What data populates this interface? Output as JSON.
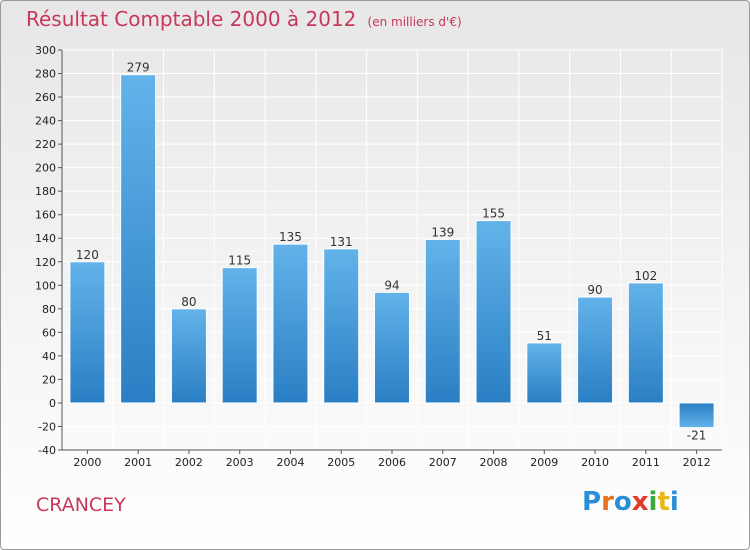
{
  "title": "Résultat Comptable 2000 à 2012",
  "unit_note": "(en milliers d'€)",
  "commune": "CRANCEY",
  "logo": {
    "text": "Proxiti",
    "colors": [
      "#2a8fd6",
      "#e8731a",
      "#2a8fd6",
      "#e03a2a",
      "#3aa83a",
      "#e8b81a",
      "#2a8fd6"
    ]
  },
  "colors": {
    "title": "#c8385a",
    "bar_light": "#6cb8ec",
    "bar_dark": "#2a7fc4",
    "grid": "#ffffff",
    "background_top": "#e7e7e7"
  },
  "chart_data": {
    "type": "bar",
    "categories": [
      "2000",
      "2001",
      "2002",
      "2003",
      "2004",
      "2005",
      "2006",
      "2007",
      "2008",
      "2009",
      "2010",
      "2011",
      "2012"
    ],
    "values": [
      120,
      279,
      80,
      115,
      135,
      131,
      94,
      139,
      155,
      51,
      90,
      102,
      -21
    ],
    "value_labels": [
      "120",
      "279",
      "80",
      "115",
      "135",
      "131",
      "94",
      "139",
      "155",
      "51",
      "90",
      "102",
      "-21"
    ],
    "ylim": [
      -40,
      300
    ],
    "yticks": [
      -40,
      -20,
      0,
      20,
      40,
      60,
      80,
      100,
      120,
      140,
      160,
      180,
      200,
      220,
      240,
      260,
      280,
      300
    ],
    "grid": true,
    "xlabel": "",
    "ylabel": ""
  }
}
